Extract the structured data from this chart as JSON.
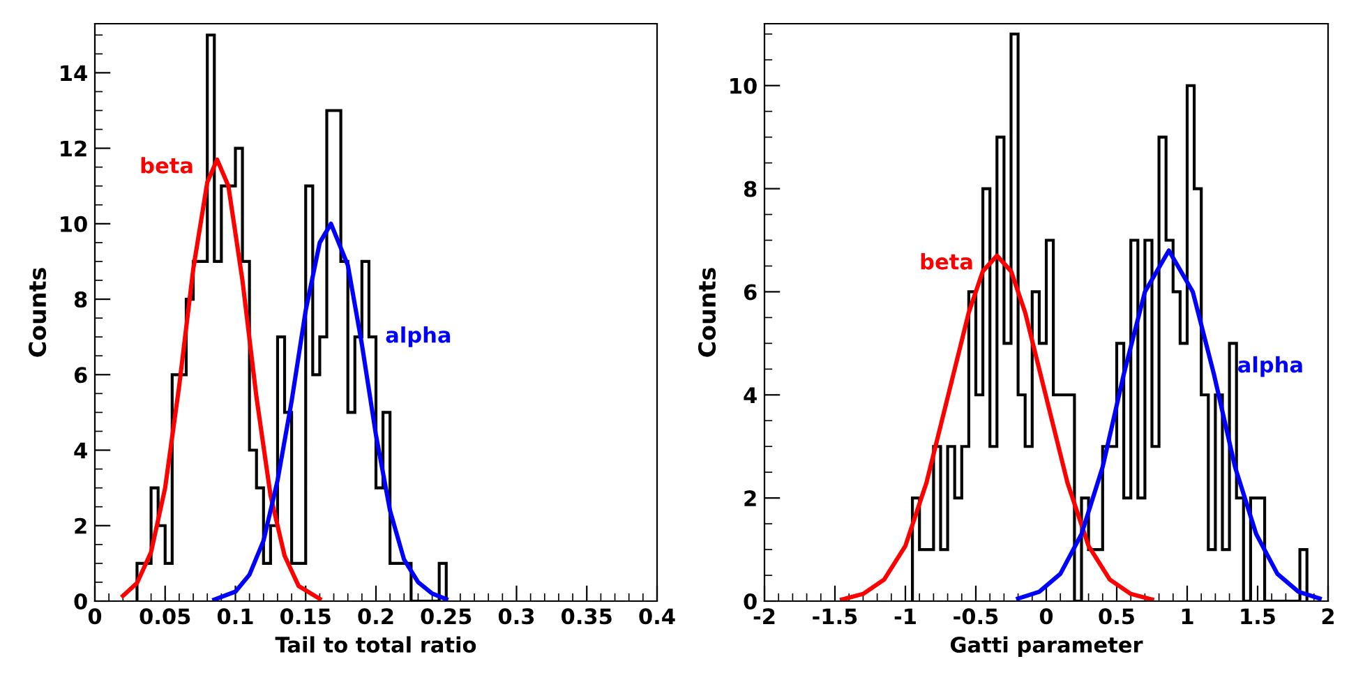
{
  "chart_data": [
    {
      "type": "histogram",
      "xlabel": "Tail to total ratio",
      "ylabel": "Counts",
      "color": "#000000",
      "grid": false,
      "marker": "none",
      "bins": [
        0.03,
        0.035,
        0.04,
        0.045,
        0.05,
        0.055,
        0.06,
        0.065,
        0.07,
        0.075,
        0.08,
        0.085,
        0.09,
        0.095,
        0.1,
        0.105,
        0.11,
        0.115,
        0.12,
        0.125,
        0.13,
        0.135,
        0.14,
        0.145,
        0.15,
        0.155,
        0.16,
        0.165,
        0.17,
        0.175,
        0.18,
        0.185,
        0.19,
        0.195,
        0.2,
        0.205,
        0.21,
        0.215,
        0.22,
        0.225,
        0.23,
        0.235,
        0.24,
        0.245,
        0.25
      ],
      "values": [
        1,
        1,
        3,
        2,
        1,
        6,
        6,
        8,
        9,
        9,
        15,
        9,
        11,
        11,
        12,
        9,
        4,
        3,
        1,
        2,
        7,
        5,
        1,
        1,
        11,
        6,
        7,
        13,
        13,
        9,
        5,
        7,
        9,
        7,
        3,
        5,
        1,
        1,
        1,
        0,
        0,
        0,
        0,
        1
      ],
      "series": [
        {
          "type": "line",
          "name": "beta",
          "color": "#ff0000",
          "x": [
            0.02,
            0.03,
            0.04,
            0.05,
            0.06,
            0.07,
            0.08,
            0.087,
            0.095,
            0.105,
            0.115,
            0.125,
            0.135,
            0.145,
            0.16
          ],
          "values": [
            0.14,
            0.48,
            1.3,
            3.0,
            5.7,
            8.8,
            11.1,
            11.7,
            11.0,
            8.5,
            5.4,
            2.8,
            1.2,
            0.4,
            0.06
          ]
        },
        {
          "type": "line",
          "name": "alpha",
          "color": "#0000ff",
          "x": [
            0.085,
            0.1,
            0.11,
            0.12,
            0.13,
            0.14,
            0.15,
            0.16,
            0.168,
            0.18,
            0.19,
            0.2,
            0.21,
            0.22,
            0.23,
            0.24,
            0.25
          ],
          "values": [
            0.04,
            0.25,
            0.7,
            1.6,
            3.2,
            5.3,
            7.7,
            9.5,
            10,
            8.9,
            6.8,
            4.4,
            2.4,
            1.1,
            0.5,
            0.2,
            0.05
          ]
        }
      ],
      "xlim": [
        0,
        0.4
      ],
      "xticks": [
        0,
        0.05,
        0.1,
        0.15,
        0.2,
        0.25,
        0.3,
        0.35,
        0.4
      ],
      "ylim": [
        0,
        15.3
      ],
      "yticks": [
        0,
        2,
        4,
        6,
        8,
        10,
        12,
        14
      ]
    },
    {
      "type": "histogram",
      "xlabel": "Gatti parameter",
      "ylabel": "Counts",
      "color": "#000000",
      "grid": false,
      "marker": "none",
      "bins": [
        -0.95,
        -0.9,
        -0.85,
        -0.8,
        -0.75,
        -0.7,
        -0.65,
        -0.6,
        -0.55,
        -0.5,
        -0.45,
        -0.4,
        -0.35,
        -0.3,
        -0.25,
        -0.2,
        -0.15,
        -0.1,
        -0.05,
        0,
        0.05,
        0.1,
        0.15,
        0.2,
        0.25,
        0.3,
        0.35,
        0.4,
        0.45,
        0.5,
        0.55,
        0.6,
        0.65,
        0.7,
        0.75,
        0.8,
        0.85,
        0.9,
        0.95,
        1.0,
        1.05,
        1.1,
        1.15,
        1.2,
        1.25,
        1.3,
        1.35,
        1.4,
        1.45,
        1.5,
        1.55,
        1.6,
        1.65,
        1.7,
        1.75,
        1.8,
        1.85
      ],
      "values": [
        2,
        1,
        1,
        3,
        1,
        3,
        2,
        3,
        6,
        4,
        8,
        3,
        9,
        5,
        11,
        4,
        3,
        6,
        5,
        7,
        4,
        4,
        4,
        0,
        2,
        1,
        1,
        3,
        3,
        5,
        2,
        7,
        2,
        7,
        3,
        9,
        7,
        6,
        5,
        10,
        8,
        4,
        1,
        4,
        1,
        5,
        2,
        0,
        2,
        2,
        0,
        0,
        0,
        0,
        0,
        1
      ],
      "series": [
        {
          "type": "line",
          "name": "beta",
          "color": "#ff0000",
          "x": [
            -1.45,
            -1.3,
            -1.15,
            -1.0,
            -0.85,
            -0.7,
            -0.55,
            -0.45,
            -0.35,
            -0.25,
            -0.15,
            0,
            0.15,
            0.3,
            0.45,
            0.6,
            0.75
          ],
          "values": [
            0.03,
            0.14,
            0.42,
            1.07,
            2.3,
            3.95,
            5.6,
            6.4,
            6.7,
            6.4,
            5.6,
            3.95,
            2.3,
            1.07,
            0.42,
            0.14,
            0.03
          ]
        },
        {
          "type": "line",
          "name": "alpha",
          "color": "#0000ff",
          "x": [
            -0.2,
            -0.05,
            0.1,
            0.25,
            0.4,
            0.55,
            0.7,
            0.87,
            1.04,
            1.19,
            1.34,
            1.49,
            1.64,
            1.79,
            1.94
          ],
          "values": [
            0.05,
            0.18,
            0.53,
            1.3,
            2.6,
            4.4,
            6.0,
            6.8,
            6.0,
            4.4,
            2.6,
            1.3,
            0.53,
            0.18,
            0.05
          ]
        }
      ],
      "xlim": [
        -2,
        2
      ],
      "xticks": [
        -2,
        -1.5,
        -1,
        -0.5,
        0,
        0.5,
        1,
        1.5,
        2
      ],
      "ylim": [
        0,
        11.2
      ],
      "yticks": [
        0,
        2,
        4,
        6,
        8,
        10
      ]
    }
  ]
}
